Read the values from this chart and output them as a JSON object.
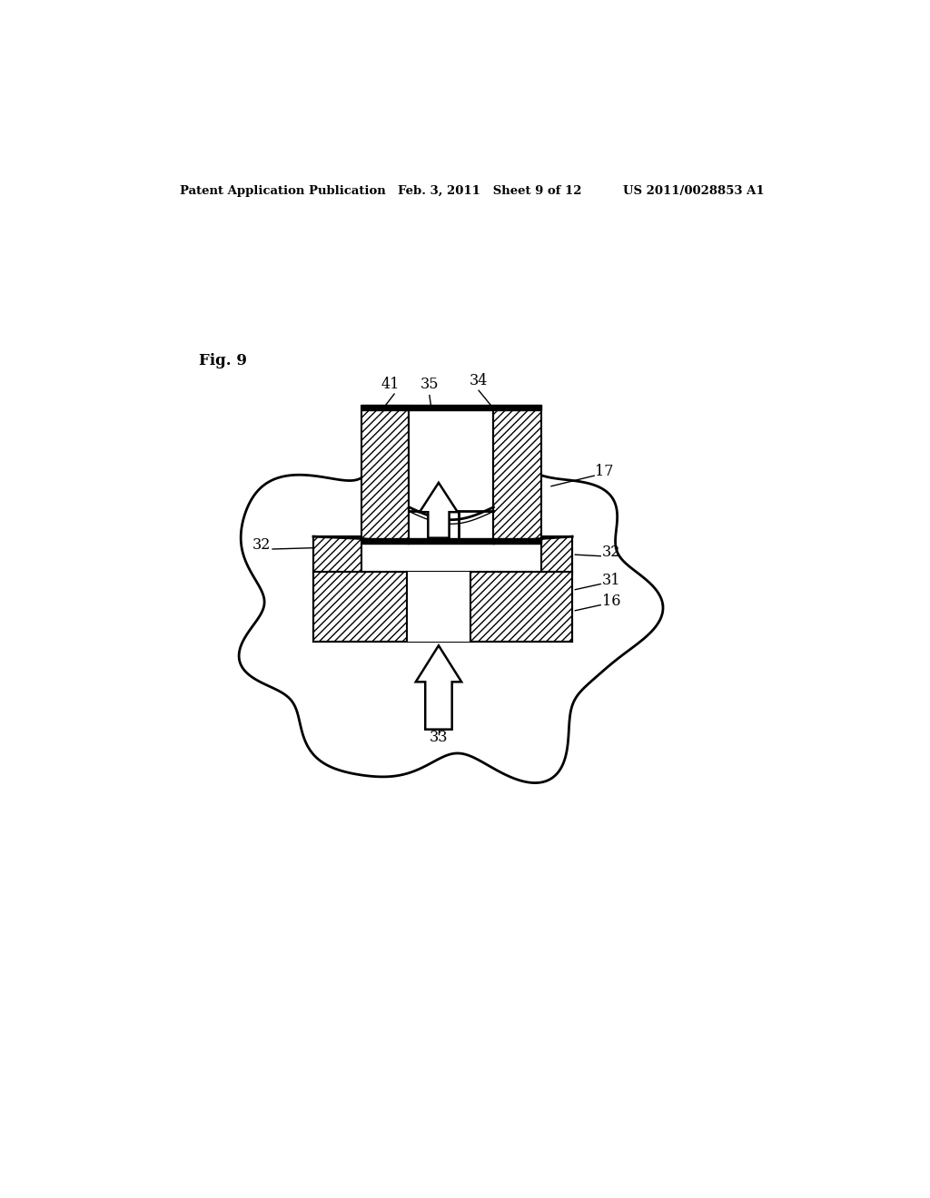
{
  "bg_color": "#ffffff",
  "header_left": "Patent Application Publication",
  "header_mid": "Feb. 3, 2011   Sheet 9 of 12",
  "header_right": "US 2011/0028853 A1",
  "fig_label": "Fig. 9",
  "line_color": "#000000"
}
